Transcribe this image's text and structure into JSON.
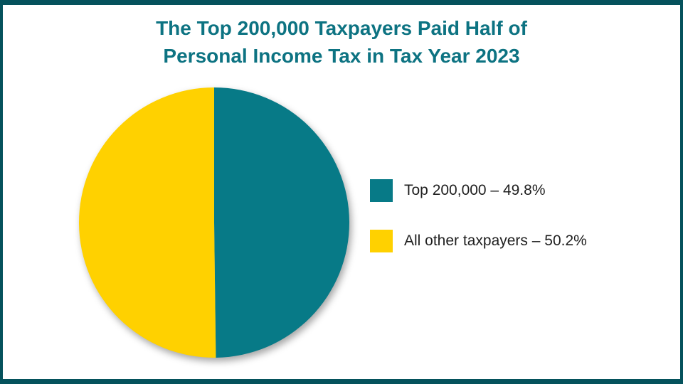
{
  "page": {
    "background": "#FFFFFF",
    "frame_color": "#05525C"
  },
  "header": {
    "title_line1": "The Top 200,000 Taxpayers Paid Half of",
    "title_line2": "Personal Income Tax in Tax Year 2023",
    "title_color": "#0D7382"
  },
  "chart_data": {
    "type": "pie",
    "title": "The Top 200,000 Taxpayers Paid Half of Personal Income Tax in Tax Year 2023",
    "units": "percent",
    "start_angle_deg": -90,
    "direction": "clockwise",
    "legend_position": "right",
    "series": [
      {
        "name": "Top 200,000",
        "value": 49.8,
        "color": "#077A87",
        "legend_label": "Top 200,000 – 49.8%"
      },
      {
        "name": "All other taxpayers",
        "value": 50.2,
        "color": "#FFD100",
        "legend_label": "All other taxpayers – 50.2%"
      }
    ]
  }
}
